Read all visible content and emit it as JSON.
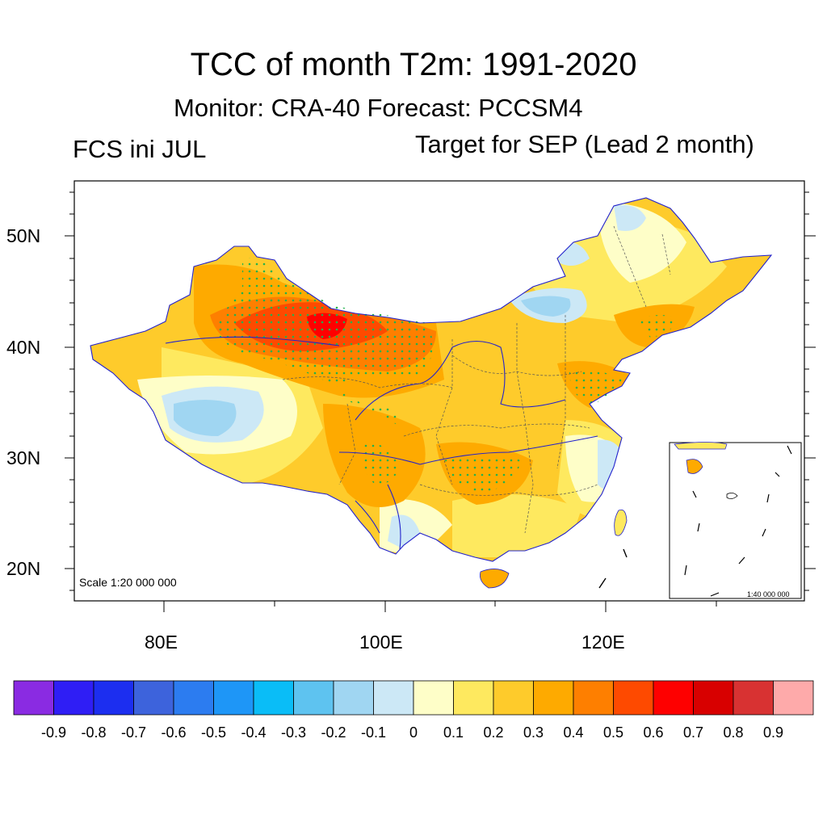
{
  "title": "TCC of month T2m: 1991-2020",
  "subtitle": "Monitor: CRA-40   Forecast: PCCSM4",
  "left_label": "FCS ini JUL",
  "right_label": "Target for SEP (Lead 2 month)",
  "scale_main": "Scale 1:20 000 000",
  "scale_inset": "1:40 000 000",
  "lat_labels": [
    "50N",
    "40N",
    "30N",
    "20N"
  ],
  "lon_labels": [
    "80E",
    "100E",
    "120E"
  ],
  "colorbar": {
    "colors": [
      "#8a2be2",
      "#2f1ef5",
      "#1c2ef0",
      "#3d63dc",
      "#2c7cf0",
      "#1e96f7",
      "#0abdf7",
      "#5ec3f0",
      "#a0d6f2",
      "#cce8f6",
      "#fefec8",
      "#fee95f",
      "#fecb2b",
      "#feaa00",
      "#fe7f00",
      "#fe4a00",
      "#fe0000",
      "#d80000",
      "#d83232",
      "#feaaaa"
    ],
    "labels": [
      "-0.9",
      "-0.8",
      "-0.7",
      "-0.6",
      "-0.5",
      "-0.4",
      "-0.3",
      "-0.2",
      "-0.1",
      "0",
      "0.1",
      "0.2",
      "0.3",
      "0.4",
      "0.5",
      "0.6",
      "0.7",
      "0.8",
      "0.9"
    ]
  }
}
